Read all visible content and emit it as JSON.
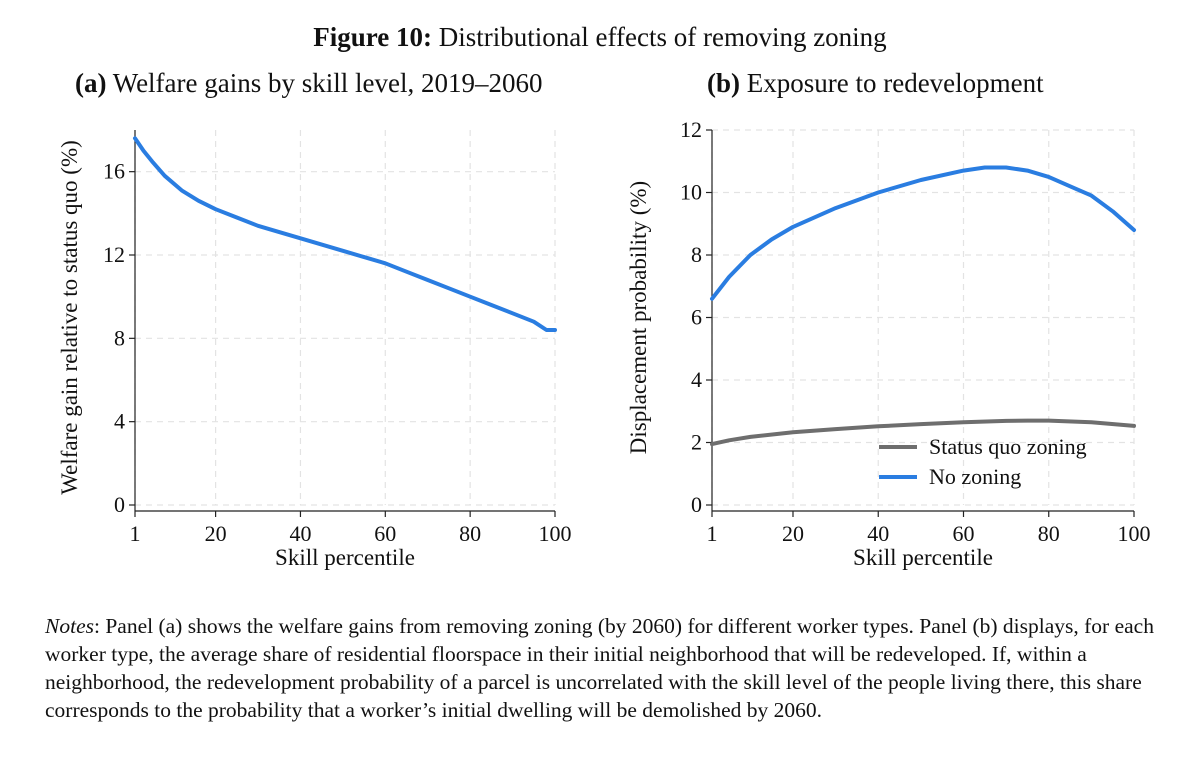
{
  "figure": {
    "label": "Figure 10:",
    "title": "Distributional effects of removing zoning"
  },
  "chart_data": [
    {
      "type": "line",
      "panel_label": "(a)",
      "title": "Welfare gains by skill level, 2019–2060",
      "xlabel": "Skill percentile",
      "ylabel": "Welfare gain relative to status quo (%)",
      "xlim": [
        1,
        100
      ],
      "ylim": [
        0,
        18
      ],
      "xticks": [
        1,
        20,
        40,
        60,
        80,
        100
      ],
      "yticks": [
        0,
        4,
        8,
        12,
        16
      ],
      "grid": true,
      "series": [
        {
          "color": "#2a7de1",
          "x": [
            1,
            3,
            5,
            8,
            12,
            16,
            20,
            25,
            30,
            35,
            40,
            45,
            50,
            55,
            60,
            65,
            70,
            75,
            80,
            85,
            90,
            95,
            98,
            100
          ],
          "y": [
            17.6,
            17.0,
            16.5,
            15.8,
            15.1,
            14.6,
            14.2,
            13.8,
            13.4,
            13.1,
            12.8,
            12.5,
            12.2,
            11.9,
            11.6,
            11.2,
            10.8,
            10.4,
            10.0,
            9.6,
            9.2,
            8.8,
            8.4,
            8.4
          ]
        }
      ]
    },
    {
      "type": "line",
      "panel_label": "(b)",
      "title": "Exposure to redevelopment",
      "xlabel": "Skill percentile",
      "ylabel": "Displacement probability (%)",
      "xlim": [
        1,
        100
      ],
      "ylim": [
        0,
        12
      ],
      "xticks": [
        1,
        20,
        40,
        60,
        80,
        100
      ],
      "yticks": [
        0,
        2,
        4,
        6,
        8,
        10,
        12
      ],
      "grid": true,
      "legend": "bottom-right",
      "series": [
        {
          "name": "Status quo zoning",
          "color": "#6e6e6e",
          "x": [
            1,
            5,
            10,
            20,
            30,
            40,
            50,
            60,
            70,
            75,
            80,
            90,
            100
          ],
          "y": [
            1.95,
            2.07,
            2.18,
            2.33,
            2.43,
            2.52,
            2.59,
            2.65,
            2.69,
            2.7,
            2.7,
            2.65,
            2.53
          ]
        },
        {
          "name": "No zoning",
          "color": "#2a7de1",
          "x": [
            1,
            5,
            10,
            15,
            20,
            30,
            40,
            50,
            60,
            65,
            70,
            75,
            80,
            85,
            90,
            95,
            100
          ],
          "y": [
            6.6,
            7.3,
            8.0,
            8.5,
            8.9,
            9.5,
            10.0,
            10.4,
            10.7,
            10.8,
            10.8,
            10.7,
            10.5,
            10.2,
            9.9,
            9.4,
            8.8
          ]
        }
      ]
    }
  ],
  "notes": {
    "label": "Notes",
    "text": ": Panel (a) shows the welfare gains from removing zoning (by 2060) for different worker types. Panel (b) displays, for each worker type, the average share of residential floorspace in their initial neighborhood that will be redeveloped. If, within a neighborhood, the redevelopment probability of a parcel is uncorrelated with the skill level of the people living there, this share corresponds to the probability that a worker’s initial dwelling will be demolished by 2060."
  }
}
